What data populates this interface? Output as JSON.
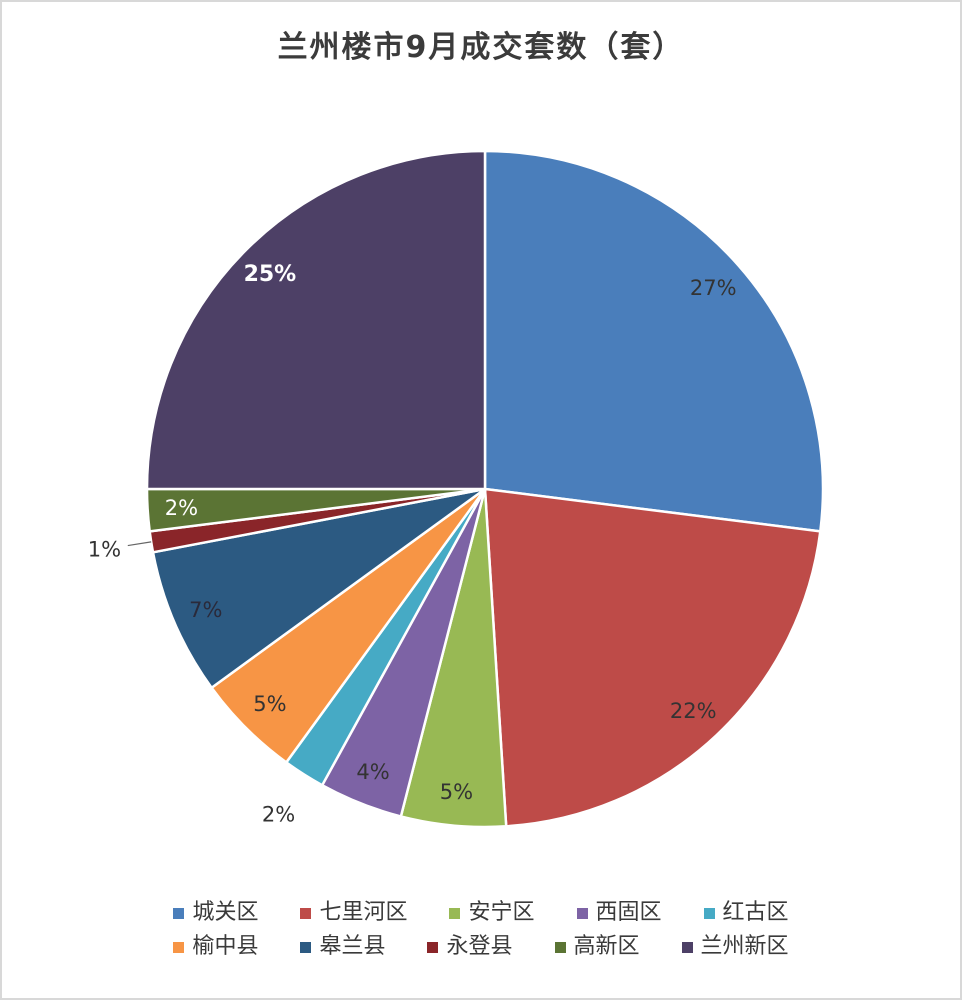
{
  "title": "兰州楼市9月成交套数（套）",
  "chart_data": {
    "type": "pie",
    "title": "兰州楼市9月成交套数（套）",
    "start_angle_deg": 0,
    "direction": "clockwise",
    "legend_position": "bottom",
    "legend_rows": [
      [
        "城关区",
        "七里河区",
        "安宁区",
        "西固区",
        "红古区"
      ],
      [
        "榆中县",
        "皋兰县",
        "永登县",
        "高新区",
        "兰州新区"
      ]
    ],
    "slices": [
      {
        "name": "城关区",
        "value_pct": 27,
        "color": "#4a7ebb",
        "label": {
          "text": "27%",
          "placement": "inside",
          "color": "#333333",
          "bold": false
        }
      },
      {
        "name": "七里河区",
        "value_pct": 22,
        "color": "#be4b48",
        "label": {
          "text": "22%",
          "placement": "inside",
          "color": "#333333",
          "bold": false
        }
      },
      {
        "name": "安宁区",
        "value_pct": 5,
        "color": "#98b954",
        "label": {
          "text": "5%",
          "placement": "inside",
          "color": "#333333",
          "bold": false
        }
      },
      {
        "name": "西固区",
        "value_pct": 4,
        "color": "#7d63a5",
        "label": {
          "text": "4%",
          "placement": "inside",
          "color": "#333333",
          "bold": false
        }
      },
      {
        "name": "红古区",
        "value_pct": 2,
        "color": "#46aac5",
        "label": {
          "text": "2%",
          "placement": "outside",
          "color": "#333333",
          "bold": false
        }
      },
      {
        "name": "榆中县",
        "value_pct": 5,
        "color": "#f79545",
        "label": {
          "text": "5%",
          "placement": "inside",
          "color": "#333333",
          "bold": false
        }
      },
      {
        "name": "皋兰县",
        "value_pct": 7,
        "color": "#2c5a82",
        "label": {
          "text": "7%",
          "placement": "inside",
          "color": "#2a2a3a",
          "bold": false
        }
      },
      {
        "name": "永登县",
        "value_pct": 1,
        "color": "#8a2529",
        "label": {
          "text": "1%",
          "placement": "outside",
          "color": "#333333",
          "bold": false,
          "leader": true
        }
      },
      {
        "name": "高新区",
        "value_pct": 2,
        "color": "#5b7434",
        "label": {
          "text": "2%",
          "placement": "inside",
          "color": "#ffffff",
          "bold": false
        }
      },
      {
        "name": "兰州新区",
        "value_pct": 25,
        "color": "#4d4066",
        "label": {
          "text": "25%",
          "placement": "inside",
          "color": "#ffffff",
          "bold": true
        }
      }
    ]
  }
}
